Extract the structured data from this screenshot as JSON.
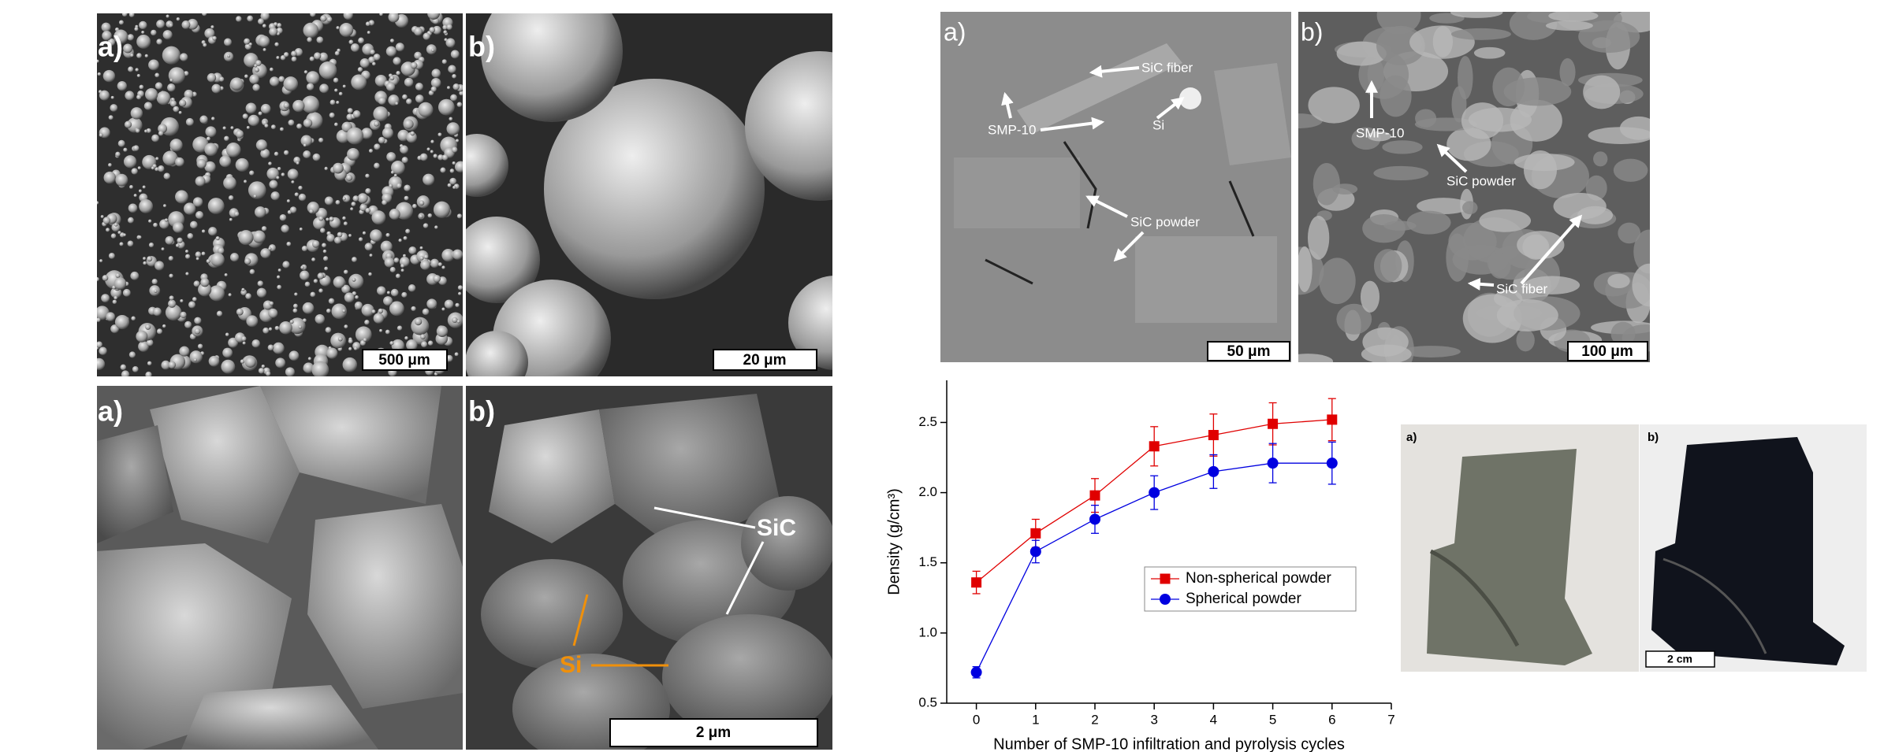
{
  "sem_powder": {
    "panels": [
      {
        "label": "a)",
        "scale_bar": "500 μm"
      },
      {
        "label": "b)",
        "scale_bar": "20 μm"
      }
    ]
  },
  "sem_microstructure": {
    "panels": [
      {
        "label": "a)"
      },
      {
        "label": "b)",
        "scale_bar": "2 μm",
        "annotations": [
          "SiC",
          "Si"
        ]
      }
    ]
  },
  "sem_composite": {
    "panels": [
      {
        "label": "a)",
        "scale_bar": "50 μm",
        "annotations": [
          "SiC fiber",
          "SMP-10",
          "Si",
          "SiC powder"
        ]
      },
      {
        "label": "b)",
        "scale_bar": "100 μm",
        "annotations": [
          "SMP-10",
          "SiC powder",
          "SiC fiber"
        ]
      }
    ]
  },
  "photos": {
    "panels": [
      {
        "label": "a)"
      },
      {
        "label": "b)",
        "scale_bar": "2 cm"
      }
    ]
  },
  "chart_data": {
    "type": "line",
    "xlabel": "Number of SMP-10 infiltration and pyrolysis cycles",
    "ylabel": "Density (g/cm³)",
    "x": [
      0,
      1,
      2,
      3,
      4,
      5,
      6
    ],
    "series": [
      {
        "name": "Non-spherical powder",
        "color": "#e00000",
        "marker": "square",
        "values": [
          1.36,
          1.71,
          1.98,
          2.33,
          2.41,
          2.49,
          2.52
        ],
        "errors": [
          0.08,
          0.1,
          0.12,
          0.14,
          0.15,
          0.15,
          0.15
        ]
      },
      {
        "name": "Spherical powder",
        "color": "#0000e0",
        "marker": "circle",
        "values": [
          0.72,
          1.58,
          1.81,
          2.0,
          2.15,
          2.21,
          2.21
        ],
        "errors": [
          0.04,
          0.08,
          0.1,
          0.12,
          0.12,
          0.14,
          0.15
        ]
      }
    ],
    "xlim": [
      -0.5,
      7
    ],
    "xticks": [
      0,
      1,
      2,
      3,
      4,
      5,
      6,
      7
    ],
    "ylim": [
      0.5,
      2.8
    ],
    "yticks": [
      {
        "value": 0.5,
        "label": "0.5"
      },
      {
        "value": 1,
        "label": "1.0"
      },
      {
        "value": 1.5,
        "label": "1.5"
      },
      {
        "value": 2,
        "label": "2.0"
      },
      {
        "value": 2.5,
        "label": "2.5"
      }
    ],
    "legend": "center right",
    "grid": false
  }
}
